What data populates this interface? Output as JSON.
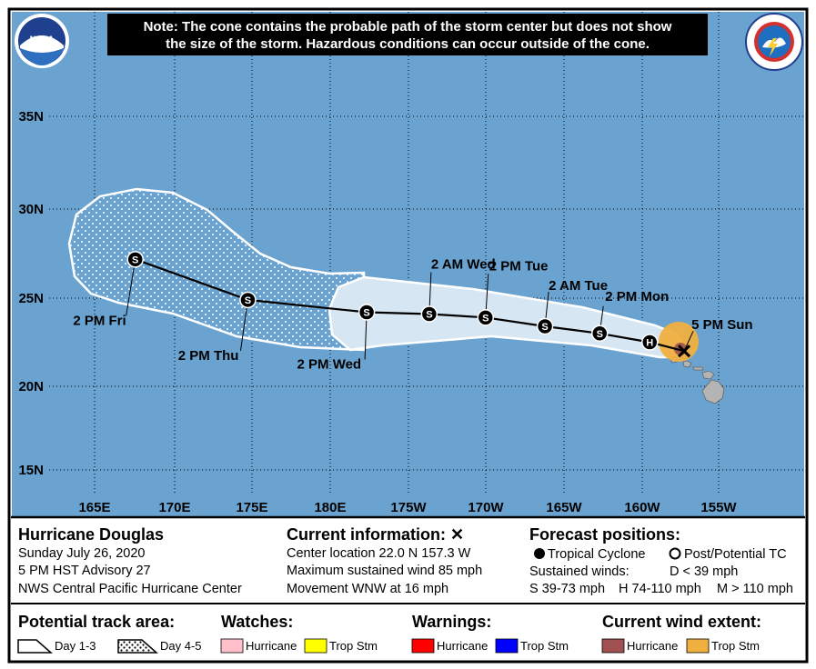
{
  "note": {
    "line1": "Note: The cone contains the probable path of the storm center but does not show",
    "line2": "the size of the storm. Hazardous conditions can occur outside of the cone."
  },
  "logos": {
    "left": "noaa-logo",
    "right": "nws-logo"
  },
  "axes": {
    "lat_labels": [
      "35N",
      "30N",
      "25N",
      "20N",
      "15N"
    ],
    "lon_labels": [
      "165E",
      "170E",
      "175E",
      "180E",
      "175W",
      "170W",
      "165W",
      "160W",
      "155W"
    ]
  },
  "track": {
    "points": [
      {
        "symbol": "x",
        "label": "5 PM Sun",
        "lon": -157.3,
        "lat": 22.0
      },
      {
        "symbol": "H",
        "label": "",
        "lon": -159.5,
        "lat": 22.5
      },
      {
        "symbol": "S",
        "label": "2 PM Mon",
        "lon": -162.7,
        "lat": 23.0
      },
      {
        "symbol": "S",
        "label": "2 AM Tue",
        "lon": -166.2,
        "lat": 23.4
      },
      {
        "symbol": "S",
        "label": "2 PM Tue",
        "lon": -170.0,
        "lat": 23.9
      },
      {
        "symbol": "S",
        "label": "2 AM Wed",
        "lon": -173.6,
        "lat": 24.1
      },
      {
        "symbol": "S",
        "label": "2 PM Wed",
        "lon": -177.6,
        "lat": 24.2
      },
      {
        "symbol": "S",
        "label": "2 PM Thu",
        "lon": 174.8,
        "lat": 24.9
      },
      {
        "symbol": "S",
        "label": "2 PM Fri",
        "lon": 167.6,
        "lat": 27.2
      }
    ]
  },
  "info": {
    "storm_name": "Hurricane Douglas",
    "date": "Sunday July 26, 2020",
    "advisory": "5 PM HST Advisory 27",
    "center": "NWS Central Pacific Hurricane Center",
    "current_title": "Current information: ",
    "current_symbol": "✕",
    "location": "Center location 22.0 N 157.3 W",
    "max_wind": "Maximum sustained wind 85 mph",
    "movement": "Movement WNW at 16 mph",
    "forecast_title": "Forecast positions:",
    "tropical_cyclone": "Tropical Cyclone",
    "post_tc": "Post/Potential TC",
    "sustained_winds": "Sustained winds:",
    "d_winds": "D < 39 mph",
    "s_winds": "S 39-73 mph",
    "h_winds": "H 74-110 mph",
    "m_winds": "M > 110 mph"
  },
  "legend": {
    "track_title": "Potential track area:",
    "day13": "Day 1-3",
    "day45": "Day 4-5",
    "watches_title": "Watches:",
    "warnings_title": "Warnings:",
    "wind_title": "Current wind extent:",
    "hurricane": "Hurricane",
    "trop_stm": "Trop Stm",
    "colors": {
      "hurricane_watch": "#ffc0cb",
      "ts_watch": "#ffff00",
      "hurricane_warning": "#ff0000",
      "ts_warning": "#0000ff",
      "hurricane_wind": "#a05050",
      "ts_wind": "#f0b040"
    }
  },
  "colors": {
    "ocean": "#6aa2d0",
    "cone_day13": "#d6e6f2",
    "land": "#b4b4b4"
  }
}
